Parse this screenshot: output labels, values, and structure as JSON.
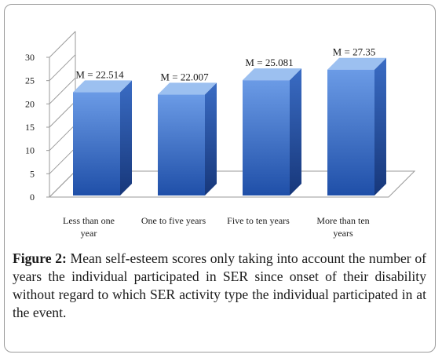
{
  "figure": {
    "label": "Figure 2:",
    "caption": "Mean self-esteem scores only taking into account the number of years the individual participated in SER since onset of their disability without regard to which SER activity type the individual participated in at the event."
  },
  "chart_data": {
    "type": "bar",
    "style": "3d-column",
    "categories": [
      [
        "Less than one",
        "year"
      ],
      [
        "One to five years"
      ],
      [
        "Five to ten years"
      ],
      [
        "More than ten",
        "years"
      ]
    ],
    "values": [
      22.514,
      22.007,
      25.081,
      27.35
    ],
    "data_labels": [
      "M = 22.514",
      "M = 22.007",
      "M = 25.081",
      "M = 27.35"
    ],
    "ylim": [
      0,
      30
    ],
    "yticks": [
      "0",
      "5",
      "10",
      "15",
      "20",
      "25",
      "30"
    ],
    "grid": false,
    "legend": "none",
    "colors": {
      "bar_front_top": "#6b9be6",
      "bar_front_bottom": "#1f4fa8",
      "bar_side_top": "#3a6cc4",
      "bar_side_bottom": "#17377a",
      "bar_top": "#9cc0f0",
      "axis": "#9a9a9a",
      "text": "#1a1a1a"
    }
  }
}
